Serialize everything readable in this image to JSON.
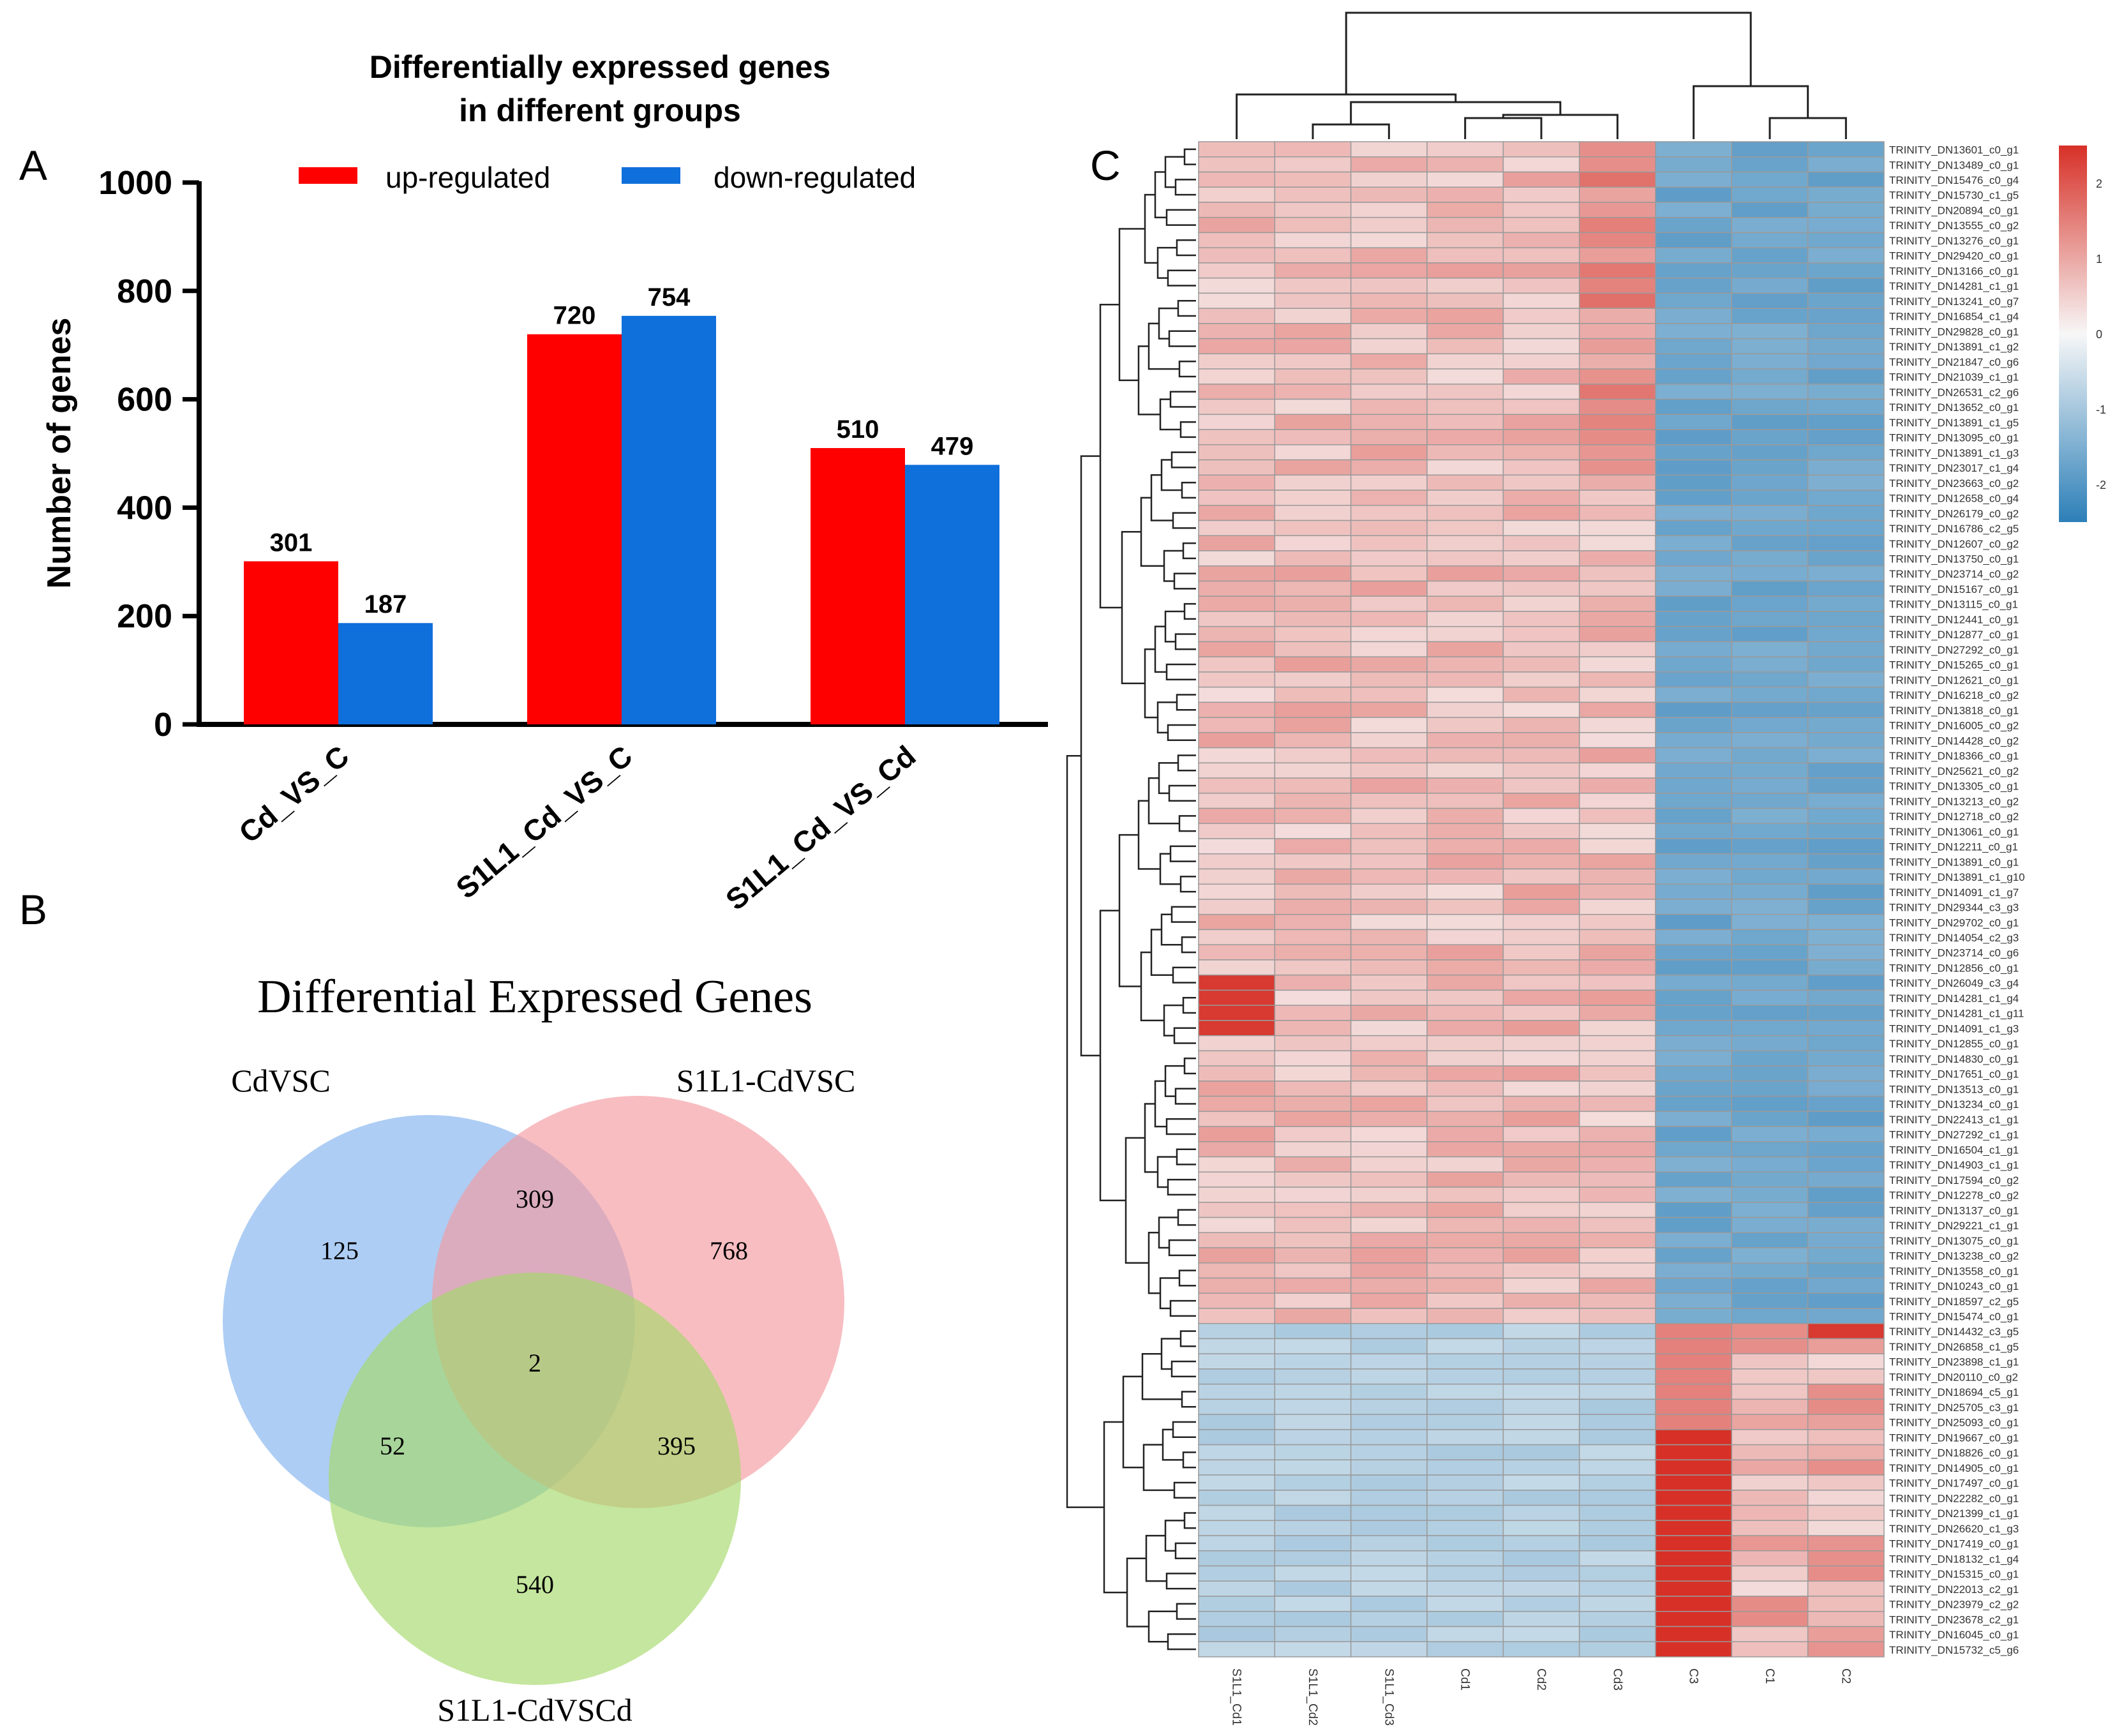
{
  "colors": {
    "up": "#fe0000",
    "down": "#0f6fdb",
    "venn_a": "#8ab8ef",
    "venn_b": "#f59aa0",
    "venn_c": "#a5d86a",
    "hm_high": "#d73027",
    "hm_mid": "#f7f7f7",
    "hm_low": "#2c7fb8"
  },
  "panel_a": {
    "letter": "A",
    "title_line1": "Differentially expressed genes",
    "title_line2": "in different groups",
    "ylabel": "Number of genes",
    "ylim": [
      0,
      1000
    ],
    "yticks": [
      "0",
      "200",
      "400",
      "600",
      "800",
      "1000"
    ],
    "legend_up": "up-regulated",
    "legend_down": "down-regulated"
  },
  "chart_data": [
    {
      "type": "bar",
      "title": "Differentially expressed genes in different groups",
      "xlabel": "",
      "ylabel": "Number of genes",
      "ylim": [
        0,
        1000
      ],
      "categories": [
        "Cd_VS_C",
        "S1L1_Cd_VS_C",
        "S1L1_Cd_VS_Cd"
      ],
      "series": [
        {
          "name": "up-regulated",
          "values": [
            301,
            720,
            510
          ],
          "labels": [
            "301",
            "720",
            "510"
          ]
        },
        {
          "name": "down-regulated",
          "values": [
            187,
            754,
            479
          ],
          "labels": [
            "187",
            "754",
            "479"
          ]
        }
      ]
    },
    {
      "type": "venn",
      "title": "Differential Expressed Genes",
      "sets": [
        "CdVSC",
        "S1L1-CdVSC",
        "S1L1-CdVSCd"
      ],
      "regions": [
        {
          "name": "only_a",
          "value": "125"
        },
        {
          "name": "a_b",
          "value": "309"
        },
        {
          "name": "only_b",
          "value": "768"
        },
        {
          "name": "a_b_c",
          "value": "2"
        },
        {
          "name": "a_c",
          "value": "52"
        },
        {
          "name": "b_c",
          "value": "395"
        },
        {
          "name": "only_c",
          "value": "540"
        }
      ]
    },
    {
      "type": "heatmap",
      "columns": [
        "S1L1_Cd1",
        "S1L1_Cd2",
        "S1L1_Cd3",
        "Cd1",
        "Cd2",
        "Cd3",
        "C3",
        "C1",
        "C2"
      ],
      "colorbar_ticks": [
        "2",
        "1",
        "0",
        "-1",
        "-2"
      ],
      "rows": [
        "TRINITY_DN13601_c0_g1",
        "TRINITY_DN13489_c0_g1",
        "TRINITY_DN15476_c0_g4",
        "TRINITY_DN15730_c1_g5",
        "TRINITY_DN20894_c0_g1",
        "TRINITY_DN13555_c0_g2",
        "TRINITY_DN13276_c0_g1",
        "TRINITY_DN29420_c0_g1",
        "TRINITY_DN13166_c0_g1",
        "TRINITY_DN14281_c1_g1",
        "TRINITY_DN13241_c0_g7",
        "TRINITY_DN16854_c1_g4",
        "TRINITY_DN29828_c0_g1",
        "TRINITY_DN13891_c1_g2",
        "TRINITY_DN21847_c0_g6",
        "TRINITY_DN21039_c1_g1",
        "TRINITY_DN26531_c2_g6",
        "TRINITY_DN13652_c0_g1",
        "TRINITY_DN13891_c1_g5",
        "TRINITY_DN13095_c0_g1",
        "TRINITY_DN13891_c1_g3",
        "TRINITY_DN23017_c1_g4",
        "TRINITY_DN23663_c0_g2",
        "TRINITY_DN12658_c0_g4",
        "TRINITY_DN26179_c0_g2",
        "TRINITY_DN16786_c2_g5",
        "TRINITY_DN12607_c0_g2",
        "TRINITY_DN13750_c0_g1",
        "TRINITY_DN23714_c0_g2",
        "TRINITY_DN15167_c0_g1",
        "TRINITY_DN13115_c0_g1",
        "TRINITY_DN12441_c0_g1",
        "TRINITY_DN12877_c0_g1",
        "TRINITY_DN27292_c0_g1",
        "TRINITY_DN15265_c0_g1",
        "TRINITY_DN12621_c0_g1",
        "TRINITY_DN16218_c0_g2",
        "TRINITY_DN13818_c0_g1",
        "TRINITY_DN16005_c0_g2",
        "TRINITY_DN14428_c0_g2",
        "TRINITY_DN18366_c0_g1",
        "TRINITY_DN25621_c0_g2",
        "TRINITY_DN13305_c0_g1",
        "TRINITY_DN13213_c0_g2",
        "TRINITY_DN12718_c0_g2",
        "TRINITY_DN13061_c0_g1",
        "TRINITY_DN12211_c0_g1",
        "TRINITY_DN13891_c0_g1",
        "TRINITY_DN13891_c1_g10",
        "TRINITY_DN14091_c1_g7",
        "TRINITY_DN29344_c3_g3",
        "TRINITY_DN29702_c0_g1",
        "TRINITY_DN14054_c2_g3",
        "TRINITY_DN23714_c0_g6",
        "TRINITY_DN12856_c0_g1",
        "TRINITY_DN26049_c3_g4",
        "TRINITY_DN14281_c1_g4",
        "TRINITY_DN14281_c1_g11",
        "TRINITY_DN14091_c1_g3",
        "TRINITY_DN12855_c0_g1",
        "TRINITY_DN14830_c0_g1",
        "TRINITY_DN17651_c0_g1",
        "TRINITY_DN13513_c0_g1",
        "TRINITY_DN13234_c0_g1",
        "TRINITY_DN22413_c1_g1",
        "TRINITY_DN27292_c1_g1",
        "TRINITY_DN16504_c1_g1",
        "TRINITY_DN14903_c1_g1",
        "TRINITY_DN17594_c0_g2",
        "TRINITY_DN12278_c0_g2",
        "TRINITY_DN13137_c0_g1",
        "TRINITY_DN29221_c1_g1",
        "TRINITY_DN13075_c0_g1",
        "TRINITY_DN13238_c0_g2",
        "TRINITY_DN13558_c0_g1",
        "TRINITY_DN10243_c0_g1",
        "TRINITY_DN18597_c2_g5",
        "TRINITY_DN15474_c0_g1",
        "TRINITY_DN14432_c3_g5",
        "TRINITY_DN26858_c1_g5",
        "TRINITY_DN23898_c1_g1",
        "TRINITY_DN20110_c0_g2",
        "TRINITY_DN18694_c5_g1",
        "TRINITY_DN25705_c3_g1",
        "TRINITY_DN25093_c0_g1",
        "TRINITY_DN19667_c0_g1",
        "TRINITY_DN18826_c0_g1",
        "TRINITY_DN14905_c0_g1",
        "TRINITY_DN17497_c0_g1",
        "TRINITY_DN22282_c0_g1",
        "TRINITY_DN21399_c1_g1",
        "TRINITY_DN26620_c1_g3",
        "TRINITY_DN17419_c0_g1",
        "TRINITY_DN18132_c1_g4",
        "TRINITY_DN15315_c0_g1",
        "TRINITY_DN22013_c2_g1",
        "TRINITY_DN23979_c2_g2",
        "TRINITY_DN23678_c2_g1",
        "TRINITY_DN16045_c0_g1",
        "TRINITY_DN15732_c5_g6"
      ],
      "row_groups": [
        {
          "name": "upper cluster: up in S1L1_Cd and Cd, down in C",
          "from": 0,
          "to": 77
        },
        {
          "name": "lower cluster: up in C, down in S1L1_Cd and Cd",
          "from": 78,
          "to": 100
        }
      ],
      "values_note": "z-scored expression, range -2 to 2"
    }
  ],
  "panel_b": {
    "letter": "B",
    "title": "Differential Expressed Genes",
    "set_labels": [
      "CdVSC",
      "S1L1-CdVSC",
      "S1L1-CdVSCd"
    ]
  },
  "panel_c": {
    "letter": "C"
  }
}
